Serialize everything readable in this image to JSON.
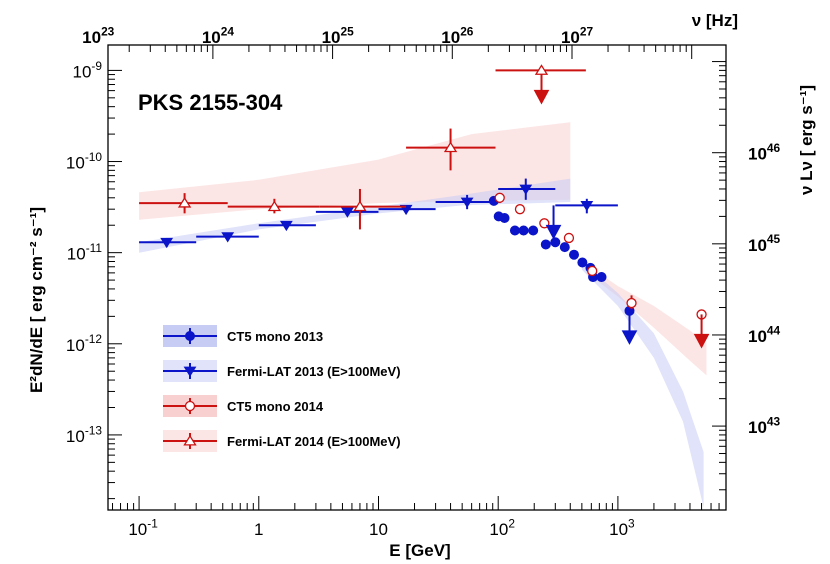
{
  "chart_data": {
    "type": "scatter",
    "title": "PKS 2155-304",
    "xlabel": "E [GeV]",
    "ylabel_left": "E²dN/dE [ erg cm⁻² s⁻¹]",
    "ylabel_right": "ν Lν [ erg s⁻¹]",
    "xlabel_top": "ν [Hz]",
    "xscale": "log",
    "yscale": "log",
    "xlim": [
      0.055,
      8000
    ],
    "ylim": [
      1.5e-14,
      1.9e-09
    ],
    "x_ticks": [
      {
        "value": 0.1,
        "base": "10",
        "exp": "-1"
      },
      {
        "value": 1,
        "base": "1",
        "exp": ""
      },
      {
        "value": 10,
        "base": "10",
        "exp": ""
      },
      {
        "value": 100,
        "base": "10",
        "exp": "2"
      },
      {
        "value": 1000,
        "base": "10",
        "exp": "3"
      }
    ],
    "y_ticks": [
      {
        "value": 1e-13,
        "base": "10",
        "exp": "-13"
      },
      {
        "value": 1e-12,
        "base": "10",
        "exp": "-12"
      },
      {
        "value": 1e-11,
        "base": "10",
        "exp": "-11"
      },
      {
        "value": 1e-10,
        "base": "10",
        "exp": "-10"
      },
      {
        "value": 1e-09,
        "base": "10",
        "exp": "-9"
      }
    ],
    "top_ticks": [
      {
        "value": 0.0414,
        "base": "10",
        "exp": "23"
      },
      {
        "value": 0.414,
        "base": "10",
        "exp": "24"
      },
      {
        "value": 4.14,
        "base": "10",
        "exp": "25"
      },
      {
        "value": 41.4,
        "base": "10",
        "exp": "26"
      },
      {
        "value": 414,
        "base": "10",
        "exp": "27"
      }
    ],
    "right_ticks": [
      {
        "value": 1.25e-10,
        "base": "10",
        "exp": "46"
      },
      {
        "value": 1.25e-11,
        "base": "10",
        "exp": "45"
      },
      {
        "value": 1.25e-12,
        "base": "10",
        "exp": "44"
      },
      {
        "value": 1.25e-13,
        "base": "10",
        "exp": "43"
      }
    ],
    "legend": [
      {
        "label": "CT5 mono 2013",
        "series": "ct5_2013"
      },
      {
        "label": "Fermi-LAT 2013 (E>100MeV)",
        "series": "fermi_2013"
      },
      {
        "label": "CT5 mono 2014",
        "series": "ct5_2014"
      },
      {
        "label": "Fermi-LAT 2014 (E>100MeV)",
        "series": "fermi_2014"
      }
    ],
    "colors": {
      "blue": "#0b14c8",
      "red": "#cc1111",
      "blue_band": "#c7ccf5",
      "red_band": "#f9d0d0"
    },
    "series": [
      {
        "id": "fermi_2014_band",
        "kind": "band",
        "color": "red_band",
        "points": [
          {
            "x": 0.1,
            "lo": 2.3e-11,
            "hi": 4.6e-11
          },
          {
            "x": 1,
            "lo": 3e-11,
            "hi": 6.3e-11
          },
          {
            "x": 10,
            "lo": 3.5e-11,
            "hi": 1.05e-10
          },
          {
            "x": 60,
            "lo": 3.7e-11,
            "hi": 2e-10
          },
          {
            "x": 400,
            "lo": 3.8e-11,
            "hi": 2.7e-10
          }
        ]
      },
      {
        "id": "fermi_2013_band",
        "kind": "band",
        "color": "blue_band",
        "points": [
          {
            "x": 0.1,
            "lo": 1e-11,
            "hi": 1.3e-11
          },
          {
            "x": 1,
            "lo": 1.8e-11,
            "hi": 2.1e-11
          },
          {
            "x": 10,
            "lo": 2.7e-11,
            "hi": 3.2e-11
          },
          {
            "x": 50,
            "lo": 3.3e-11,
            "hi": 4.3e-11
          },
          {
            "x": 400,
            "lo": 3.6e-11,
            "hi": 6.5e-11
          }
        ]
      },
      {
        "id": "ct5_2014_band",
        "kind": "band",
        "color": "red_band",
        "points": [
          {
            "x": 600,
            "lo": 5.5e-12,
            "hi": 6.8e-12
          },
          {
            "x": 1000,
            "lo": 3.3e-12,
            "hi": 4.3e-12
          },
          {
            "x": 2000,
            "lo": 1.5e-12,
            "hi": 2.6e-12
          },
          {
            "x": 4000,
            "lo": 6.5e-13,
            "hi": 1.4e-12
          },
          {
            "x": 5500,
            "lo": 4.5e-13,
            "hi": 1e-12
          }
        ]
      },
      {
        "id": "ct5_2013_band",
        "kind": "band",
        "color": "blue_band",
        "points": [
          {
            "x": 500,
            "lo": 6.5e-12,
            "hi": 8e-12
          },
          {
            "x": 1000,
            "lo": 2.6e-12,
            "hi": 3.6e-12
          },
          {
            "x": 2000,
            "lo": 7e-13,
            "hi": 1.3e-12
          },
          {
            "x": 3500,
            "lo": 1.4e-13,
            "hi": 3e-13
          },
          {
            "x": 5200,
            "lo": 1.6e-14,
            "hi": 6.5e-14
          }
        ]
      },
      {
        "id": "fermi_2013",
        "kind": "points",
        "marker": "tri-down",
        "color": "blue",
        "points": [
          {
            "x": 0.17,
            "y": 1.3e-11,
            "xlo": 0.1,
            "xhi": 0.3,
            "ylo": 1.15e-11,
            "yhi": 1.45e-11
          },
          {
            "x": 0.55,
            "y": 1.5e-11,
            "xlo": 0.3,
            "xhi": 1.0,
            "ylo": 1.4e-11,
            "yhi": 1.6e-11
          },
          {
            "x": 1.7,
            "y": 2e-11,
            "xlo": 1.0,
            "xhi": 3.0,
            "ylo": 1.9e-11,
            "yhi": 2.1e-11
          },
          {
            "x": 5.5,
            "y": 2.8e-11,
            "xlo": 3.0,
            "xhi": 10,
            "ylo": 2.6e-11,
            "yhi": 3e-11
          },
          {
            "x": 17,
            "y": 3e-11,
            "xlo": 10,
            "xhi": 30,
            "ylo": 2.7e-11,
            "yhi": 3.3e-11
          },
          {
            "x": 55,
            "y": 3.6e-11,
            "xlo": 30,
            "xhi": 100,
            "ylo": 3e-11,
            "yhi": 4.3e-11
          },
          {
            "x": 170,
            "y": 5e-11,
            "xlo": 100,
            "xhi": 300,
            "ylo": 3.8e-11,
            "yhi": 6.5e-11
          },
          {
            "x": 550,
            "y": 3.3e-11,
            "xlo": 300,
            "xhi": 1000,
            "ylo": 2.7e-11,
            "yhi": 3.9e-11
          }
        ]
      },
      {
        "id": "fermi_2014",
        "kind": "points",
        "marker": "tri-up-open",
        "color": "red",
        "points": [
          {
            "x": 0.24,
            "y": 3.5e-11,
            "xlo": 0.1,
            "xhi": 0.55,
            "ylo": 2.7e-11,
            "yhi": 4.5e-11
          },
          {
            "x": 1.35,
            "y": 3.2e-11,
            "xlo": 0.55,
            "xhi": 3.2,
            "ylo": 2.7e-11,
            "yhi": 3.9e-11
          },
          {
            "x": 7.0,
            "y": 3.2e-11,
            "xlo": 3.2,
            "xhi": 17,
            "ylo": 1.8e-11,
            "yhi": 5e-11
          },
          {
            "x": 40,
            "y": 1.42e-10,
            "xlo": 17,
            "xhi": 95,
            "ylo": 8e-11,
            "yhi": 2.3e-10
          }
        ]
      },
      {
        "id": "ct5_2013",
        "kind": "points",
        "marker": "circle-filled",
        "color": "blue",
        "points": [
          {
            "x": 92,
            "y": 3.7e-11
          },
          {
            "x": 101,
            "y": 2.5e-11
          },
          {
            "x": 113,
            "y": 2.4e-11
          },
          {
            "x": 138,
            "y": 1.75e-11
          },
          {
            "x": 163,
            "y": 1.75e-11
          },
          {
            "x": 196,
            "y": 1.75e-11
          },
          {
            "x": 250,
            "y": 1.23e-11
          },
          {
            "x": 300,
            "y": 1.3e-11
          },
          {
            "x": 360,
            "y": 1.15e-11
          },
          {
            "x": 430,
            "y": 9.5e-12
          },
          {
            "x": 505,
            "y": 7.8e-12
          },
          {
            "x": 590,
            "y": 6.8e-12
          },
          {
            "x": 620,
            "y": 5.4e-12,
            "ylo": 4.8e-12,
            "yhi": 6.1e-12
          },
          {
            "x": 730,
            "y": 5.4e-12,
            "ylo": 4.8e-12,
            "yhi": 6.1e-12
          },
          {
            "x": 1250,
            "y": 2.3e-12,
            "ylo": 1.8e-12,
            "yhi": 2.9e-12
          }
        ]
      },
      {
        "id": "ct5_2014",
        "kind": "points",
        "marker": "circle-open",
        "color": "red",
        "points": [
          {
            "x": 103,
            "y": 4e-11,
            "ylo": 3.5e-11,
            "yhi": 4.5e-11
          },
          {
            "x": 152,
            "y": 3e-11
          },
          {
            "x": 243,
            "y": 2.1e-11
          },
          {
            "x": 390,
            "y": 1.45e-11
          },
          {
            "x": 610,
            "y": 6.3e-12,
            "ylo": 5.6e-12,
            "yhi": 7e-12
          },
          {
            "x": 1300,
            "y": 2.8e-12,
            "ylo": 2.4e-12,
            "yhi": 3.4e-12
          },
          {
            "x": 5000,
            "y": 2.1e-12
          }
        ]
      }
    ],
    "upper_limits": [
      {
        "series": "fermi_2014",
        "color": "red",
        "x": 230,
        "y": 1e-09,
        "xlo": 95,
        "xhi": 540,
        "marker": "tri-up-open"
      },
      {
        "series": "ct5_2013",
        "color": "blue",
        "x": 290,
        "y": 3.3e-11,
        "marker": "none"
      },
      {
        "series": "ct5_2013",
        "color": "blue",
        "x": 1250,
        "y": 2.3e-12,
        "marker": "none"
      },
      {
        "series": "ct5_2014",
        "color": "red",
        "x": 5000,
        "y": 2.1e-12,
        "marker": "none"
      }
    ]
  }
}
